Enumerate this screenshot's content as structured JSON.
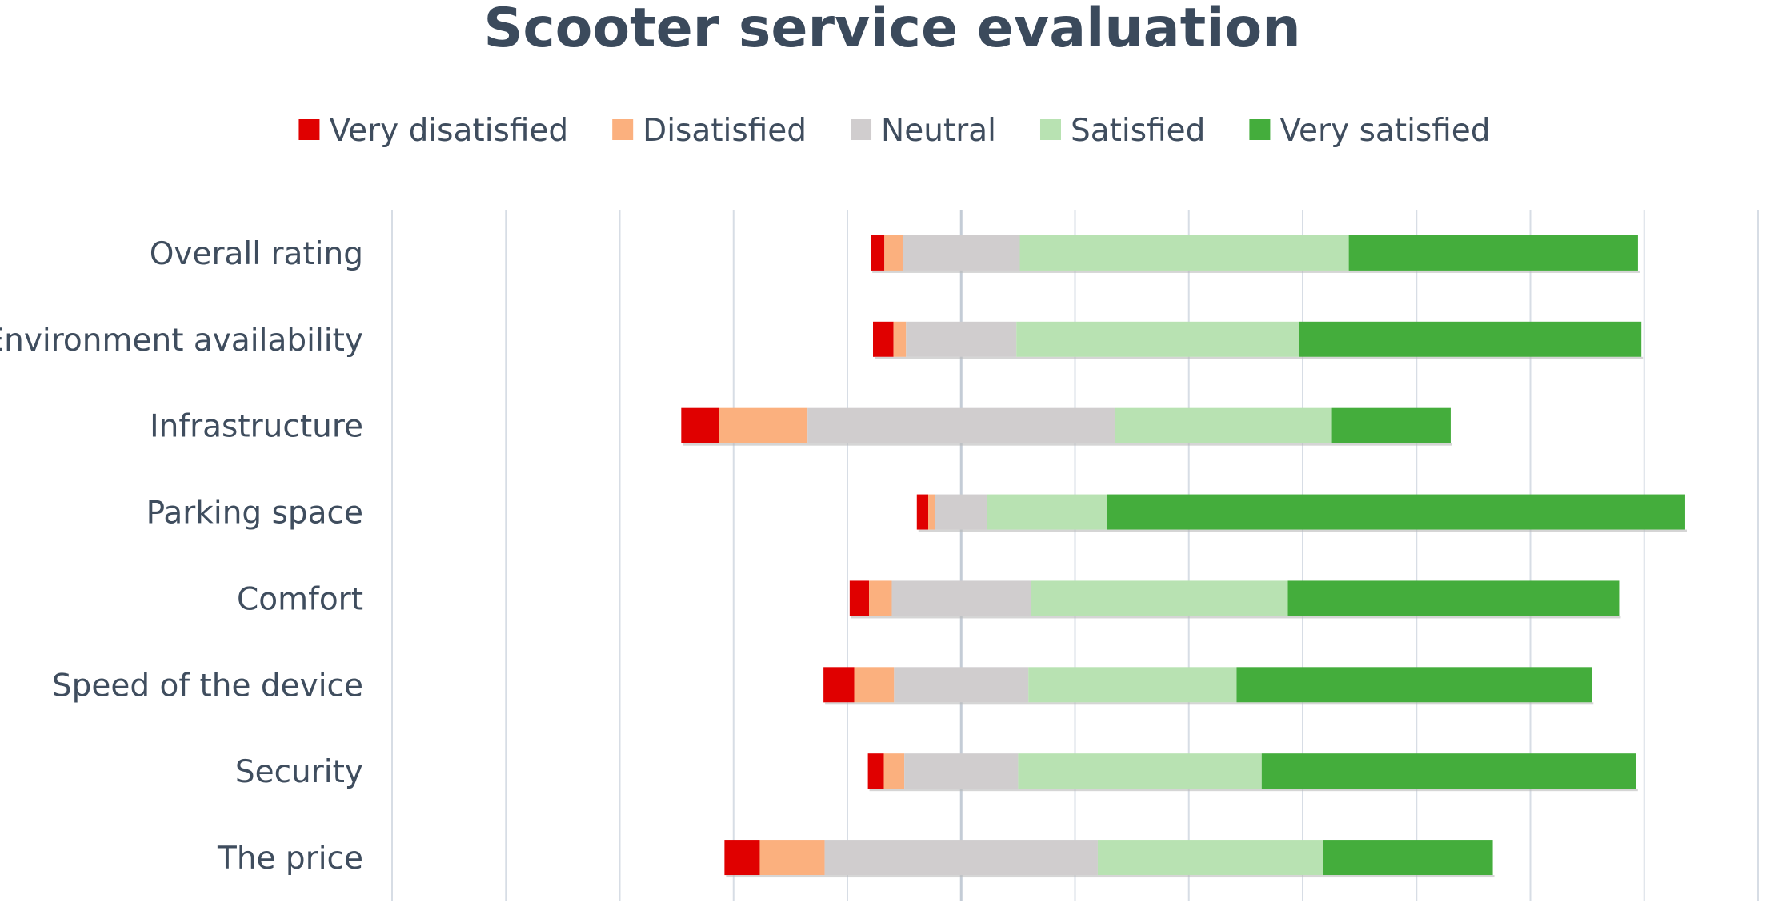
{
  "chart_data": {
    "type": "bar",
    "orientation": "horizontal",
    "stacked": true,
    "diverging": true,
    "title": "Scooter service evaluation",
    "xlabel": "",
    "ylabel": "",
    "axis_tick_labels_shown": false,
    "grid": true,
    "legend_position": "top",
    "xlim": [
      -50,
      70
    ],
    "gridline_step": 10,
    "center_value": 0,
    "categories": [
      "Overall rating",
      "Environment availability",
      "Infrastructure",
      "Parking space",
      "Comfort",
      "Speed of the device",
      "Security",
      "The price"
    ],
    "series": [
      {
        "name": "Very disatisfied",
        "color": "#e00000",
        "values": [
          1.2,
          1.8,
          3.3,
          1.0,
          1.7,
          2.7,
          1.4,
          3.1
        ]
      },
      {
        "name": "Disatisfied",
        "color": "#fbb07e",
        "values": [
          1.6,
          1.1,
          7.8,
          0.6,
          2.0,
          3.5,
          1.8,
          5.7
        ]
      },
      {
        "name": "Neutral",
        "color": "#d0cdce",
        "values": [
          10.3,
          9.7,
          27.0,
          4.6,
          12.2,
          11.8,
          10.0,
          24.0
        ]
      },
      {
        "name": "Satisfied",
        "color": "#b8e2b2",
        "values": [
          28.9,
          24.8,
          19.0,
          10.5,
          22.6,
          18.3,
          21.4,
          19.8
        ]
      },
      {
        "name": "Very satisfied",
        "color": "#44ad3c",
        "values": [
          25.4,
          30.1,
          10.5,
          50.8,
          29.1,
          31.2,
          32.9,
          14.9
        ]
      }
    ]
  }
}
